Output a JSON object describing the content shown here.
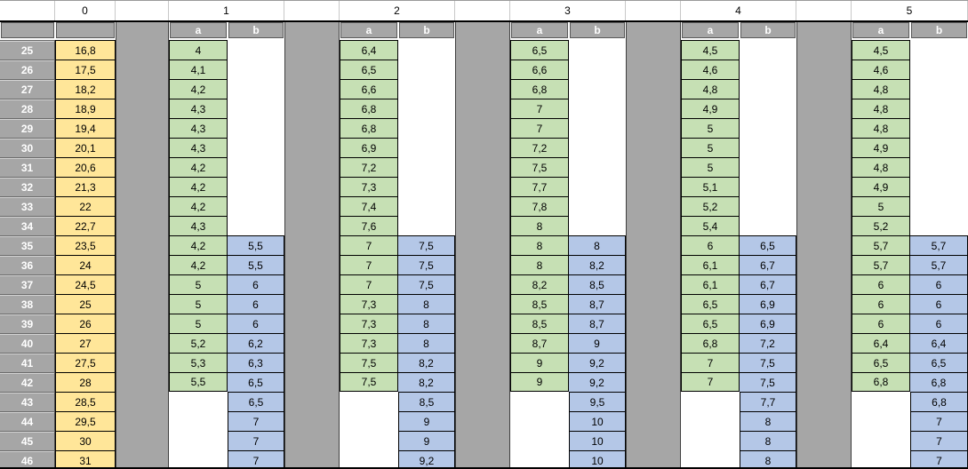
{
  "colors": {
    "col0_fill": "#FFE699",
    "a_fill": "#C6E0B4",
    "b_fill": "#B4C7E7",
    "header_gray": "#A6A6A6",
    "grid_black": "#000000",
    "spacer_edge": "#3F3F3F",
    "header_border": "#595959",
    "row1_line": "#C8C8C8",
    "text_dark": "#000000",
    "text_light": "#FFFFFF"
  },
  "table": {
    "group_headers": [
      "0",
      "1",
      "2",
      "3",
      "4",
      "5"
    ],
    "sub_headers": [
      "a",
      "b"
    ],
    "row_numbers": [
      25,
      26,
      27,
      28,
      29,
      30,
      31,
      32,
      33,
      34,
      35,
      36,
      37,
      38,
      39,
      40,
      41,
      42,
      43,
      44,
      45,
      46
    ],
    "col0": [
      "16,8",
      "17,5",
      "18,2",
      "18,9",
      "19,4",
      "20,1",
      "20,6",
      "21,3",
      "22",
      "22,7",
      "23,5",
      "24",
      "24,5",
      "25",
      "26",
      "27",
      "27,5",
      "28",
      "28,5",
      "29,5",
      "30",
      "31"
    ],
    "groups": [
      {
        "name": "1",
        "a": [
          "4",
          "4,1",
          "4,2",
          "4,3",
          "4,3",
          "4,3",
          "4,2",
          "4,2",
          "4,2",
          "4,3",
          "4,2",
          "4,2",
          "5",
          "5",
          "5",
          "5,2",
          "5,3",
          "5,5",
          "",
          "",
          "",
          ""
        ],
        "b": [
          "",
          "",
          "",
          "",
          "",
          "",
          "",
          "",
          "",
          "",
          "5,5",
          "5,5",
          "6",
          "6",
          "6",
          "6,2",
          "6,3",
          "6,5",
          "6,5",
          "7",
          "7",
          "7"
        ]
      },
      {
        "name": "2",
        "a": [
          "6,4",
          "6,5",
          "6,6",
          "6,8",
          "6,8",
          "6,9",
          "7,2",
          "7,3",
          "7,4",
          "7,6",
          "7",
          "7",
          "7",
          "7,3",
          "7,3",
          "7,3",
          "7,5",
          "7,5",
          "",
          "",
          "",
          ""
        ],
        "b": [
          "",
          "",
          "",
          "",
          "",
          "",
          "",
          "",
          "",
          "",
          "7,5",
          "7,5",
          "7,5",
          "8",
          "8",
          "8",
          "8,2",
          "8,2",
          "8,5",
          "9",
          "9",
          "9,2"
        ]
      },
      {
        "name": "3",
        "a": [
          "6,5",
          "6,6",
          "6,8",
          "7",
          "7",
          "7,2",
          "7,5",
          "7,7",
          "7,8",
          "8",
          "8",
          "8",
          "8,2",
          "8,5",
          "8,5",
          "8,7",
          "9",
          "9",
          "",
          "",
          "",
          ""
        ],
        "b": [
          "",
          "",
          "",
          "",
          "",
          "",
          "",
          "",
          "",
          "",
          "8",
          "8,2",
          "8,5",
          "8,7",
          "8,7",
          "9",
          "9,2",
          "9,2",
          "9,5",
          "10",
          "10",
          "10"
        ]
      },
      {
        "name": "4",
        "a": [
          "4,5",
          "4,6",
          "4,8",
          "4,9",
          "5",
          "5",
          "5",
          "5,1",
          "5,2",
          "5,4",
          "6",
          "6,1",
          "6,1",
          "6,5",
          "6,5",
          "6,8",
          "7",
          "7",
          "",
          "",
          "",
          ""
        ],
        "b": [
          "",
          "",
          "",
          "",
          "",
          "",
          "",
          "",
          "",
          "",
          "6,5",
          "6,7",
          "6,7",
          "6,9",
          "6,9",
          "7,2",
          "7,5",
          "7,5",
          "7,7",
          "8",
          "8",
          "8"
        ]
      },
      {
        "name": "5",
        "a": [
          "4,5",
          "4,6",
          "4,8",
          "4,8",
          "4,8",
          "4,9",
          "4,8",
          "4,9",
          "5",
          "5,2",
          "5,7",
          "5,7",
          "6",
          "6",
          "6",
          "6,4",
          "6,5",
          "6,8",
          "",
          "",
          "",
          ""
        ],
        "b": [
          "",
          "",
          "",
          "",
          "",
          "",
          "",
          "",
          "",
          "",
          "5,7",
          "5,7",
          "6",
          "6",
          "6",
          "6,4",
          "6,5",
          "6,8",
          "6,8",
          "7",
          "7",
          "7"
        ]
      }
    ]
  }
}
